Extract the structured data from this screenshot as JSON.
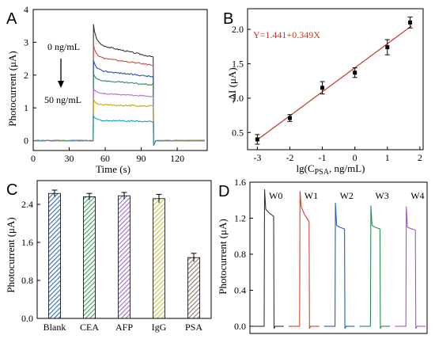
{
  "chart_data": [
    {
      "panel": "A",
      "type": "line",
      "xlabel": "Time (s)",
      "ylabel": "Photocurrent (μA)",
      "xlim": [
        0,
        145
      ],
      "ylim": [
        -0.3,
        4
      ],
      "xticks": [
        0,
        30,
        60,
        90,
        120
      ],
      "yticks": [
        0,
        1,
        2,
        3,
        4
      ],
      "annotations": [
        "0 ng/mL",
        "50 ng/mL"
      ],
      "on_time": 50,
      "off_time": 100,
      "series": [
        {
          "color": "#333333",
          "peak": 3.55,
          "plateau_start": 2.95,
          "plateau_end": 2.55
        },
        {
          "color": "#c0504d",
          "peak": 2.95,
          "plateau_start": 2.55,
          "plateau_end": 2.3
        },
        {
          "color": "#1f4fbf",
          "peak": 2.45,
          "plateau_start": 2.15,
          "plateau_end": 1.95
        },
        {
          "color": "#2e8b57",
          "peak": 2.05,
          "plateau_start": 1.85,
          "plateau_end": 1.7
        },
        {
          "color": "#b06ee0",
          "peak": 1.6,
          "plateau_start": 1.45,
          "plateau_end": 1.35
        },
        {
          "color": "#c8a800",
          "peak": 1.25,
          "plateau_start": 1.1,
          "plateau_end": 1.05
        },
        {
          "color": "#1a9ebf",
          "peak": 0.75,
          "plateau_start": 0.62,
          "plateau_end": 0.58
        }
      ]
    },
    {
      "panel": "B",
      "type": "scatter",
      "xlabel_parts": [
        "lg(C",
        "PSA",
        ", ng/mL)"
      ],
      "ylabel": "-ΔI (μA)",
      "xlim": [
        -3.3,
        2.1
      ],
      "ylim": [
        0.25,
        2.3
      ],
      "xticks": [
        -3,
        -2,
        -1,
        0,
        1,
        2
      ],
      "yticks": [
        0.5,
        1.0,
        1.5,
        2.0
      ],
      "equation": "Y=1.441+0.349X",
      "fit_color": "#c0392b",
      "fit": {
        "intercept": 1.441,
        "slope": 0.349
      },
      "x": [
        -3,
        -2,
        -1,
        0,
        1,
        1.7
      ],
      "y": [
        0.4,
        0.71,
        1.15,
        1.37,
        1.74,
        2.1
      ],
      "err": [
        0.07,
        0.05,
        0.09,
        0.07,
        0.11,
        0.08
      ]
    },
    {
      "panel": "C",
      "type": "bar",
      "ylabel": "Photocurrent (μA)",
      "categories": [
        "Blank",
        "CEA",
        "AFP",
        "IgG",
        "PSA"
      ],
      "values": [
        2.63,
        2.56,
        2.58,
        2.52,
        1.28
      ],
      "err": [
        0.07,
        0.07,
        0.07,
        0.09,
        0.09
      ],
      "colors": [
        "#2e6db4",
        "#3aa05a",
        "#9b6cc7",
        "#c9c04a",
        "#8a7a66"
      ],
      "ylim": [
        0,
        2.9
      ],
      "yticks": [
        0.0,
        0.8,
        1.6,
        2.4
      ],
      "ytick_labels": [
        "0.0",
        "0.8",
        "1.6",
        "2.4"
      ]
    },
    {
      "panel": "D",
      "type": "line",
      "ylabel": "Photocurrent (μA)",
      "ylim": [
        -0.08,
        1.6
      ],
      "yticks": [
        0.0,
        0.4,
        0.8,
        1.2,
        1.6
      ],
      "ytick_labels": [
        "0.0",
        "0.4",
        "0.8",
        "1.2",
        "1.6"
      ],
      "series": [
        {
          "name": "W0",
          "color": "#333333",
          "peak": 1.52,
          "plateau_start": 1.3,
          "plateau_end": 1.22
        },
        {
          "name": "W1",
          "color": "#d9402e",
          "peak": 1.5,
          "plateau_start": 1.33,
          "plateau_end": 1.16
        },
        {
          "name": "W2",
          "color": "#1f5fbf",
          "peak": 1.37,
          "plateau_start": 1.12,
          "plateau_end": 1.08
        },
        {
          "name": "W3",
          "color": "#2e8b57",
          "peak": 1.34,
          "plateau_start": 1.12,
          "plateau_end": 1.08
        },
        {
          "name": "W4",
          "color": "#b050d0",
          "peak": 1.33,
          "plateau_start": 1.1,
          "plateau_end": 1.07
        }
      ]
    }
  ]
}
